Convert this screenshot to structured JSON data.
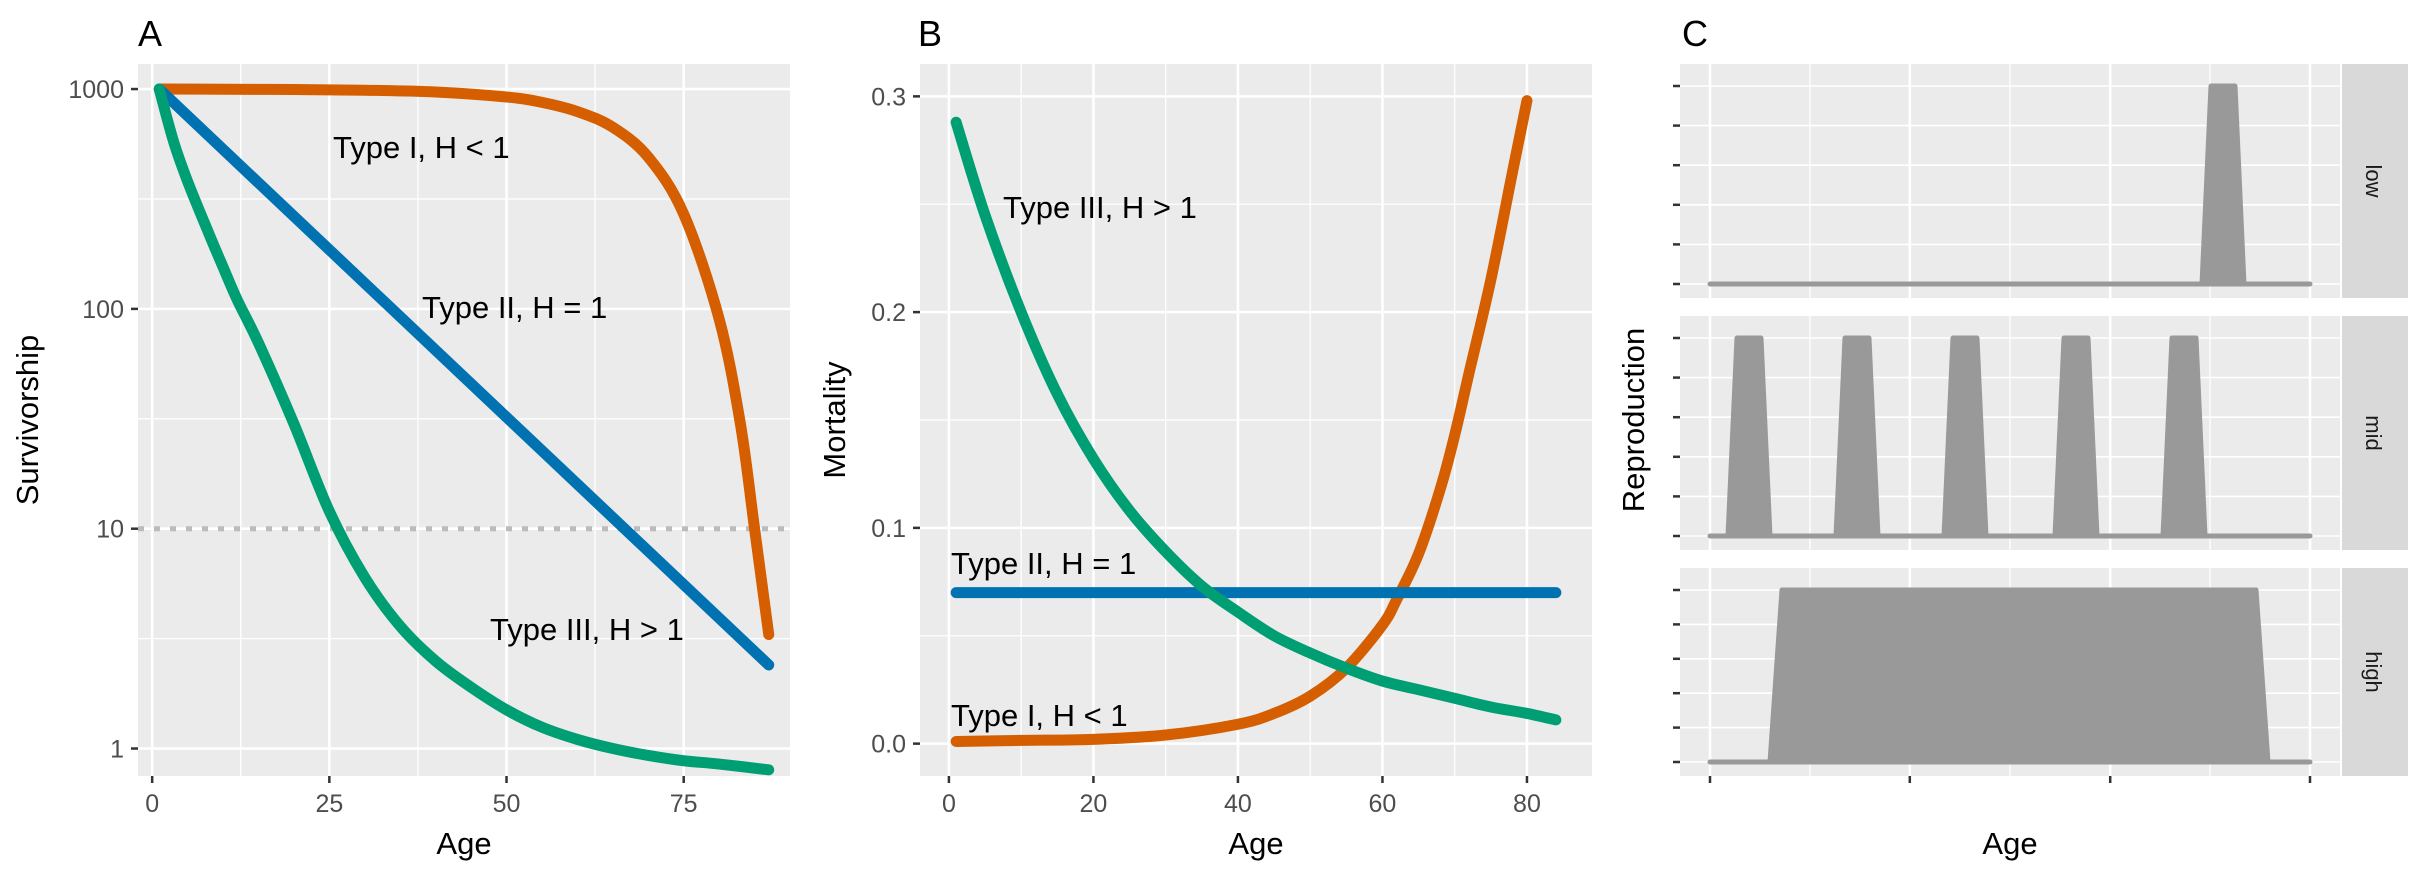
{
  "colors": {
    "type1": "#D55E00",
    "type2": "#0072B2",
    "type3": "#009E73",
    "reproduction_fill": "#999999",
    "panel_bg": "#EBEBEB",
    "strip_bg": "#D9D9D9",
    "reference_line": "#BBBBBB"
  },
  "chart_data": [
    {
      "panel": "A",
      "type": "line",
      "xlabel": "Age",
      "ylabel": "Survivorship",
      "xlim": [
        -2,
        90
      ],
      "ylim": [
        0.75,
        1300
      ],
      "y_scale": "log10",
      "x_ticks": [
        0,
        25,
        50,
        75
      ],
      "y_ticks": [
        1,
        10,
        100,
        1000
      ],
      "grid": true,
      "reference_line": {
        "y": 10,
        "style": "dotted"
      },
      "series": [
        {
          "key": "type1",
          "label": "Type I, H < 1",
          "x": [
            1,
            10,
            20,
            30,
            40,
            50,
            55,
            60,
            65,
            70,
            75,
            80,
            83,
            85,
            87
          ],
          "y": [
            1000,
            998,
            995,
            988,
            970,
            920,
            870,
            790,
            670,
            490,
            270,
            90,
            30,
            10,
            3.3
          ]
        },
        {
          "key": "type2",
          "label": "Type II, H = 1",
          "x": [
            1,
            87
          ],
          "y": [
            1000,
            2.4
          ]
        },
        {
          "key": "type3",
          "label": "Type III, H > 1",
          "x": [
            1,
            3,
            5,
            8,
            10,
            12,
            15,
            20,
            25,
            30,
            35,
            40,
            45,
            50,
            55,
            60,
            65,
            70,
            75,
            80,
            87
          ],
          "y": [
            1000,
            580,
            380,
            220,
            155,
            110,
            70,
            30,
            12,
            6,
            3.6,
            2.5,
            1.9,
            1.5,
            1.25,
            1.1,
            1.0,
            0.93,
            0.88,
            0.85,
            0.8
          ]
        }
      ]
    },
    {
      "panel": "B",
      "type": "line",
      "xlabel": "Age",
      "ylabel": "Mortality",
      "xlim": [
        -4,
        89
      ],
      "ylim": [
        -0.015,
        0.315
      ],
      "x_ticks": [
        0,
        20,
        40,
        60,
        80
      ],
      "y_ticks": [
        0.0,
        0.1,
        0.2,
        0.3
      ],
      "y_tick_labels": [
        "0.0",
        "0.1",
        "0.2",
        "0.3"
      ],
      "grid": true,
      "series": [
        {
          "key": "type1",
          "label": "Type I, H < 1",
          "x": [
            1,
            10,
            20,
            30,
            40,
            45,
            50,
            55,
            60,
            62,
            65,
            68,
            70,
            72,
            75,
            78,
            80
          ],
          "y": [
            0.001,
            0.0015,
            0.002,
            0.004,
            0.009,
            0.014,
            0.022,
            0.035,
            0.055,
            0.067,
            0.088,
            0.118,
            0.143,
            0.172,
            0.215,
            0.265,
            0.298
          ]
        },
        {
          "key": "type2",
          "label": "Type II, H = 1",
          "x": [
            1,
            84
          ],
          "y": [
            0.07,
            0.07
          ]
        },
        {
          "key": "type3",
          "label": "Type III, H > 1",
          "x": [
            1,
            5,
            10,
            15,
            20,
            25,
            30,
            35,
            40,
            45,
            50,
            55,
            60,
            65,
            70,
            75,
            80,
            84
          ],
          "y": [
            0.288,
            0.245,
            0.2,
            0.162,
            0.132,
            0.108,
            0.089,
            0.073,
            0.061,
            0.05,
            0.042,
            0.035,
            0.029,
            0.025,
            0.021,
            0.017,
            0.014,
            0.011
          ]
        }
      ]
    },
    {
      "panel": "C",
      "type": "area",
      "xlabel": "Age",
      "ylabel": "Reproduction",
      "xlim": [
        0,
        1
      ],
      "ylim": [
        0,
        1
      ],
      "x_ticks": [
        0,
        0.333,
        0.667,
        1
      ],
      "x_tick_labels": [
        "",
        "",
        "",
        ""
      ],
      "grid": true,
      "facets": [
        {
          "label": "low",
          "x": [
            0.0,
            0.82,
            0.835,
            0.875,
            0.89,
            1.0
          ],
          "y": [
            0,
            0,
            1,
            1,
            0,
            0
          ]
        },
        {
          "label": "mid",
          "x": [
            0.0,
            0.03,
            0.045,
            0.085,
            0.1,
            0.21,
            0.225,
            0.265,
            0.28,
            0.39,
            0.405,
            0.445,
            0.46,
            0.575,
            0.59,
            0.63,
            0.645,
            0.755,
            0.77,
            0.81,
            0.825,
            1.0
          ],
          "y": [
            0,
            0,
            1,
            1,
            0,
            0,
            1,
            1,
            0,
            0,
            1,
            1,
            0,
            0,
            1,
            1,
            0,
            0,
            1,
            1,
            0,
            0
          ]
        },
        {
          "label": "high",
          "x": [
            0.0,
            0.1,
            0.12,
            0.91,
            0.93,
            1.0
          ],
          "y": [
            0,
            0,
            1,
            1,
            0,
            0
          ]
        }
      ]
    }
  ],
  "panels": {
    "A": {
      "letter": "A",
      "xlabel": "Age",
      "ylabel": "Survivorship",
      "x_tick_labels": [
        "0",
        "25",
        "50",
        "75"
      ],
      "y_tick_labels": [
        "1",
        "10",
        "100",
        "1000"
      ],
      "label_type1": "Type I, H < 1",
      "label_type2": "Type II, H = 1",
      "label_type3": "Type III, H > 1"
    },
    "B": {
      "letter": "B",
      "xlabel": "Age",
      "ylabel": "Mortality",
      "x_tick_labels": [
        "0",
        "20",
        "40",
        "60",
        "80"
      ],
      "y_tick_labels": [
        "0.0",
        "0.1",
        "0.2",
        "0.3"
      ],
      "label_type1": "Type I, H < 1",
      "label_type2": "Type II, H = 1",
      "label_type3": "Type III, H > 1"
    },
    "C": {
      "letter": "C",
      "xlabel": "Age",
      "ylabel": "Reproduction",
      "facet_low": "low",
      "facet_mid": "mid",
      "facet_high": "high"
    }
  }
}
